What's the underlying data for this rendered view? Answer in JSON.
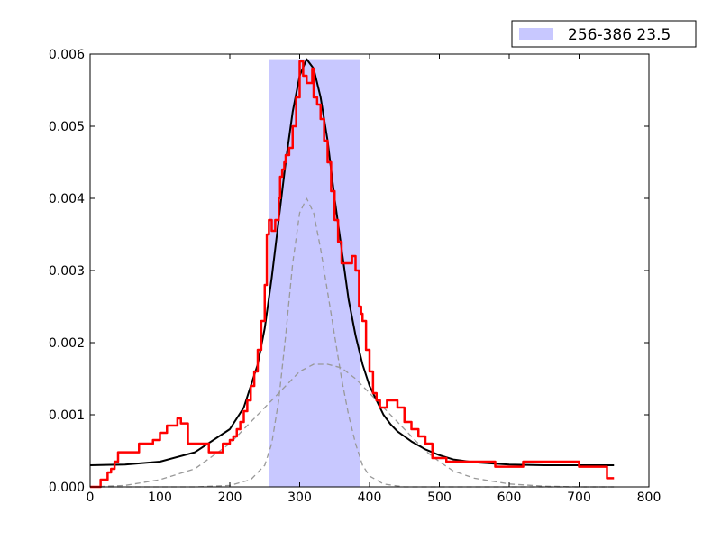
{
  "chart_data": {
    "type": "line",
    "title": "",
    "xlabel": "",
    "ylabel": "",
    "xlim": [
      0,
      800
    ],
    "ylim": [
      0,
      0.006
    ],
    "x_ticks": [
      0,
      100,
      200,
      300,
      400,
      500,
      600,
      700,
      800
    ],
    "x_tick_labels": [
      "0",
      "100",
      "200",
      "300",
      "400",
      "500",
      "600",
      "700",
      "800"
    ],
    "y_ticks": [
      0,
      0.001,
      0.002,
      0.003,
      0.004,
      0.005,
      0.006
    ],
    "y_tick_labels": [
      "0.000",
      "0.001",
      "0.002",
      "0.003",
      "0.004",
      "0.005",
      "0.006"
    ],
    "grid": false,
    "legend_position": "top-right, outside above plot",
    "highlight_band": {
      "label": "256-386 23.5",
      "x_start": 256,
      "x_end": 386,
      "y_top": 0.00593,
      "color": "#c8c8ff"
    },
    "series": [
      {
        "style": "red step line",
        "color": "#ff0000",
        "x": [
          0,
          15,
          20,
          25,
          30,
          35,
          40,
          60,
          70,
          80,
          90,
          100,
          110,
          120,
          125,
          130,
          140,
          150,
          160,
          170,
          190,
          200,
          205,
          210,
          215,
          220,
          225,
          230,
          235,
          240,
          245,
          250,
          253,
          256,
          260,
          265,
          270,
          272,
          275,
          278,
          280,
          285,
          290,
          295,
          300,
          305,
          310,
          318,
          320,
          325,
          330,
          335,
          340,
          345,
          350,
          355,
          360,
          365,
          370,
          375,
          380,
          385,
          388,
          390,
          395,
          400,
          405,
          410,
          415,
          420,
          425,
          430,
          435,
          440,
          450,
          460,
          470,
          480,
          490,
          500,
          505,
          510,
          520,
          530,
          540,
          550,
          560,
          570,
          580,
          600,
          610,
          620,
          630,
          640,
          650,
          660,
          670,
          675,
          680,
          690,
          700,
          710,
          720,
          730,
          740,
          750
        ],
        "values": [
          0.0,
          0.0001,
          0.0001,
          0.0002,
          0.00025,
          0.00035,
          0.00048,
          0.00048,
          0.0006,
          0.0006,
          0.00065,
          0.00075,
          0.00085,
          0.00085,
          0.00095,
          0.00088,
          0.0006,
          0.0006,
          0.0006,
          0.00048,
          0.0006,
          0.00065,
          0.0007,
          0.0008,
          0.0009,
          0.00105,
          0.0012,
          0.0014,
          0.0016,
          0.0019,
          0.0023,
          0.0028,
          0.0035,
          0.0037,
          0.00355,
          0.0037,
          0.004,
          0.0043,
          0.0044,
          0.0045,
          0.0046,
          0.0047,
          0.005,
          0.0054,
          0.0059,
          0.0057,
          0.0056,
          0.0058,
          0.0054,
          0.0053,
          0.0051,
          0.0048,
          0.0045,
          0.0041,
          0.0037,
          0.0034,
          0.0031,
          0.0031,
          0.0031,
          0.0032,
          0.003,
          0.0025,
          0.0024,
          0.0023,
          0.0019,
          0.0016,
          0.0013,
          0.0012,
          0.0011,
          0.0011,
          0.0012,
          0.0012,
          0.0012,
          0.0011,
          0.0009,
          0.0008,
          0.0007,
          0.0006,
          0.0004,
          0.0004,
          0.0004,
          0.00035,
          0.00035,
          0.00035,
          0.00035,
          0.00035,
          0.00035,
          0.00035,
          0.00028,
          0.00028,
          0.00028,
          0.00035,
          0.00035,
          0.00035,
          0.00035,
          0.00035,
          0.00035,
          0.00035,
          0.00035,
          0.00035,
          0.00028,
          0.00028,
          0.00028,
          0.00028,
          0.00012,
          0.00012
        ]
      },
      {
        "style": "black smooth line",
        "color": "#000000",
        "x": [
          0,
          50,
          100,
          150,
          200,
          220,
          240,
          250,
          260,
          270,
          280,
          290,
          300,
          310,
          320,
          330,
          340,
          350,
          360,
          370,
          380,
          390,
          400,
          410,
          420,
          430,
          440,
          450,
          460,
          480,
          500,
          520,
          550,
          600,
          650,
          700,
          750
        ],
        "values": [
          0.0003,
          0.00031,
          0.00035,
          0.00048,
          0.0008,
          0.0011,
          0.0017,
          0.0022,
          0.0029,
          0.0037,
          0.0045,
          0.0052,
          0.0057,
          0.00593,
          0.0058,
          0.0054,
          0.0048,
          0.004,
          0.0033,
          0.0026,
          0.0021,
          0.0017,
          0.0014,
          0.0012,
          0.001,
          0.00087,
          0.00077,
          0.0007,
          0.00063,
          0.00052,
          0.00044,
          0.00038,
          0.00034,
          0.00031,
          0.0003,
          0.0003,
          0.0003
        ]
      },
      {
        "style": "gray dashed line (narrow component)",
        "color": "#999999",
        "x": [
          0,
          150,
          200,
          230,
          250,
          260,
          270,
          280,
          290,
          300,
          310,
          320,
          330,
          340,
          350,
          360,
          370,
          380,
          390,
          400,
          420,
          450,
          500,
          600,
          750
        ],
        "values": [
          0.0,
          0.0,
          2e-05,
          0.0001,
          0.0003,
          0.0006,
          0.0012,
          0.0021,
          0.0031,
          0.0038,
          0.004,
          0.0038,
          0.0033,
          0.0027,
          0.0021,
          0.0015,
          0.001,
          0.0006,
          0.0003,
          0.00015,
          4e-05,
          0.0,
          0.0,
          0.0,
          0.0
        ]
      },
      {
        "style": "gray dashed line (wide component)",
        "color": "#999999",
        "x": [
          0,
          50,
          100,
          150,
          200,
          230,
          260,
          280,
          300,
          320,
          340,
          360,
          380,
          400,
          420,
          440,
          460,
          480,
          500,
          520,
          550,
          600,
          650,
          700,
          750
        ],
        "values": [
          0.0,
          2e-05,
          0.0001,
          0.00025,
          0.0006,
          0.0009,
          0.0012,
          0.0014,
          0.0016,
          0.0017,
          0.0017,
          0.00165,
          0.0015,
          0.0013,
          0.0011,
          0.0009,
          0.0007,
          0.0005,
          0.00035,
          0.00022,
          0.00012,
          4e-05,
          1e-05,
          0.0,
          0.0
        ]
      }
    ]
  }
}
